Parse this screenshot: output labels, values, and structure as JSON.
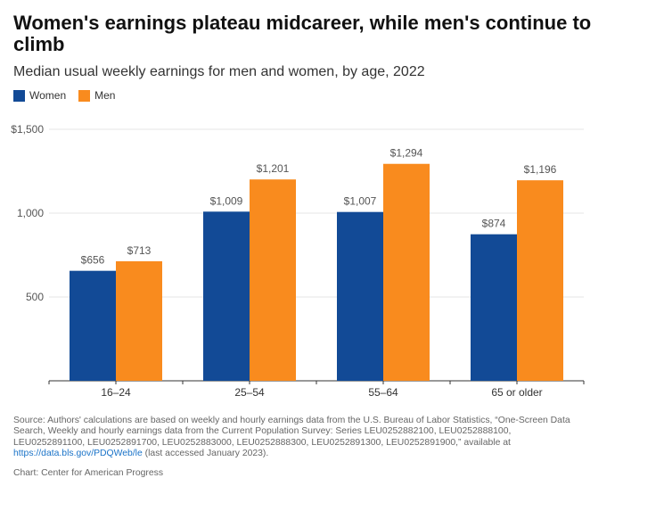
{
  "header": {
    "title": "Women's earnings plateau midcareer, while men's continue to climb",
    "subtitle": "Median usual weekly earnings for men and women, by age, 2022"
  },
  "colors": {
    "women": "#124a96",
    "men": "#f98b1e",
    "grid": "#e5e5e5",
    "axis": "#333333",
    "label": "#555555"
  },
  "chart_data": {
    "type": "bar",
    "title": "Women's earnings plateau midcareer, while men's continue to climb",
    "subtitle": "Median usual weekly earnings for men and women, by age, 2022",
    "categories": [
      "16–24",
      "25–54",
      "55–64",
      "65 or older"
    ],
    "series": [
      {
        "name": "Women",
        "values": [
          656,
          1009,
          1007,
          874
        ],
        "labels": [
          "$656",
          "$1,009",
          "$1,007",
          "$874"
        ]
      },
      {
        "name": "Men",
        "values": [
          713,
          1201,
          1294,
          1196
        ],
        "labels": [
          "$713",
          "$1,201",
          "$1,294",
          "$1,196"
        ]
      }
    ],
    "ylim": [
      0,
      1500
    ],
    "yticks": [
      500,
      1000,
      1500
    ],
    "ytick_labels": [
      "500",
      "1,000",
      "$1,500"
    ],
    "xlabel": "",
    "ylabel": "",
    "grid": true,
    "legend": "top-left"
  },
  "footer": {
    "source_text": "Source: Authors' calculations are based on weekly and hourly earnings data from the U.S. Bureau of Labor Statistics, “One-Screen Data Search, Weekly and hourly earnings data from the Current Population Survey: Series LEU0252882100, LEU0252888100, LEU0252891100, LEU0252891700, LEU0252883000, LEU0252888300, LEU0252891300, LEU0252891900,” available at",
    "link_text": "https://data.bls.gov/PDQWeb/le",
    "after_link": " (last accessed January 2023).",
    "credit": "Chart: Center for American Progress"
  }
}
